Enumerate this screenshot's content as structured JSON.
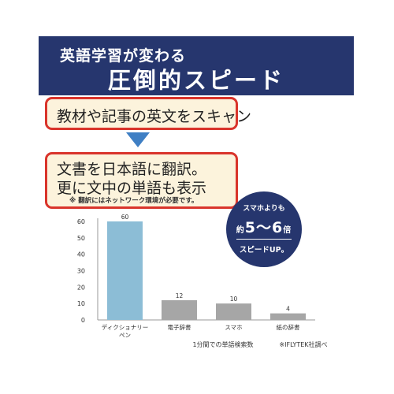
{
  "banner": {
    "subtitle": "英語学習が変わる",
    "title": "圧倒的スピード",
    "background": "#26366e"
  },
  "callouts": {
    "step1": "教材や記事の英文をスキャン",
    "step2_line1": "文書を日本語に翻訳。",
    "step2_line2": "更に文中の単語も表示",
    "note": "※ 翻訳にはネットワーク環境が必要です。",
    "border_color": "#d9342b",
    "fill_color": "#fcf3dc",
    "arrow_color": "#3f7fc4"
  },
  "badge": {
    "line1": "スマホよりも",
    "prefix": "約",
    "value": "5〜6",
    "suffix": "倍",
    "line3": "スピードUP。"
  },
  "chart_data": {
    "type": "bar",
    "categories": [
      "ディクショナリーペン",
      "電子辞書",
      "スマホ",
      "紙の辞書"
    ],
    "category_lines": [
      [
        "ディクショナリー",
        "ペン"
      ],
      [
        "電子辞書"
      ],
      [
        "スマホ"
      ],
      [
        "紙の辞書"
      ]
    ],
    "values": [
      60,
      12,
      10,
      4
    ],
    "data_labels": [
      "60",
      "12",
      "10",
      "4"
    ],
    "bar_colors": [
      "#8cbdd6",
      "#a6a6a6",
      "#a6a6a6",
      "#a6a6a6"
    ],
    "ylim": [
      0,
      60
    ],
    "yticks": [
      0,
      10,
      20,
      30,
      40,
      50,
      60
    ],
    "xlabel": "1分間での単語検索数",
    "source": "※IFLYTEK社調べ",
    "grid": false
  }
}
